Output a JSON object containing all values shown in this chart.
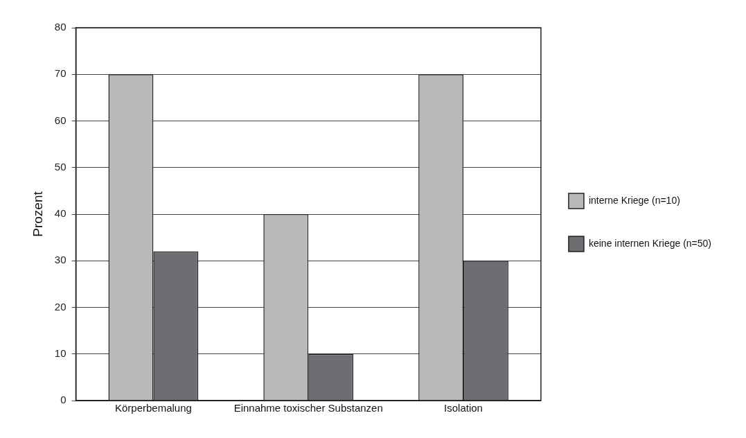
{
  "chart_data": {
    "type": "bar",
    "ylabel": "Prozent",
    "categories": [
      "Körperbemalung",
      "Einnahme toxischer Substanzen",
      "Isolation"
    ],
    "series": [
      {
        "name": "interne Kriege (n=10)",
        "color": "#b9b9bc",
        "values": [
          70,
          40,
          70
        ]
      },
      {
        "name": "keine internen Kriege (n=50)",
        "color": "#6e6e72",
        "values": [
          32,
          10,
          30
        ]
      }
    ],
    "ylim": [
      0,
      80
    ],
    "yticks": [
      0,
      10,
      20,
      30,
      40,
      50,
      60,
      70,
      80
    ],
    "grid": "y",
    "legend": "right"
  }
}
